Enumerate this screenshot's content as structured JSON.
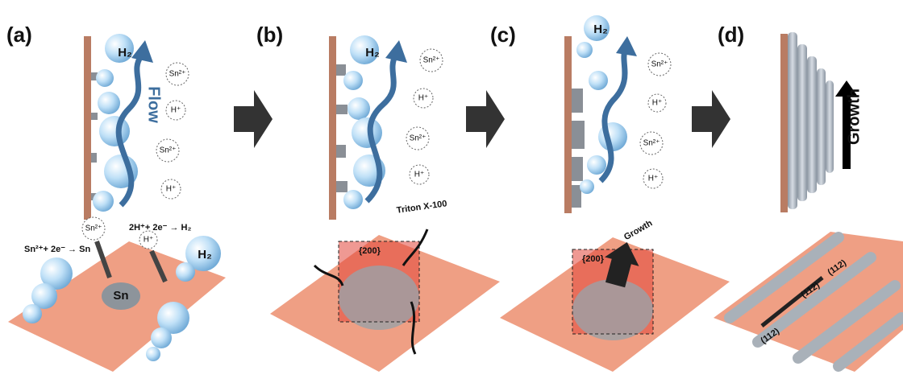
{
  "panels": [
    {
      "label": "(a)",
      "top_bubble": "H₂",
      "flow": "Flow",
      "ions": [
        "Sn²⁺",
        "H⁺",
        "Sn²⁺",
        "H⁺"
      ],
      "bottom": {
        "ions": [
          "Sn²⁺",
          "H⁺"
        ],
        "equations": [
          "Sn²⁺+ 2e⁻ → Sn",
          "2H⁺+ 2e⁻ → H₂"
        ],
        "particle": "Sn",
        "bubble": "H₂"
      }
    },
    {
      "label": "(b)",
      "top_bubble": "H₂",
      "ions": [
        "Sn²⁺",
        "H⁺",
        "Sn²⁺",
        "H⁺"
      ],
      "bottom": {
        "surfactant": "Triton X-100",
        "facet": "{200}"
      }
    },
    {
      "label": "(c)",
      "top_bubble": "H₂",
      "ions": [
        "Sn²⁺",
        "H⁺",
        "Sn²⁺",
        "H⁺"
      ],
      "bottom": {
        "facet": "{200}",
        "growth": "Growth"
      }
    },
    {
      "label": "(d)",
      "growth": "Growth",
      "bottom": {
        "facets": [
          "(112)",
          "(112)",
          "(112)"
        ]
      }
    }
  ]
}
